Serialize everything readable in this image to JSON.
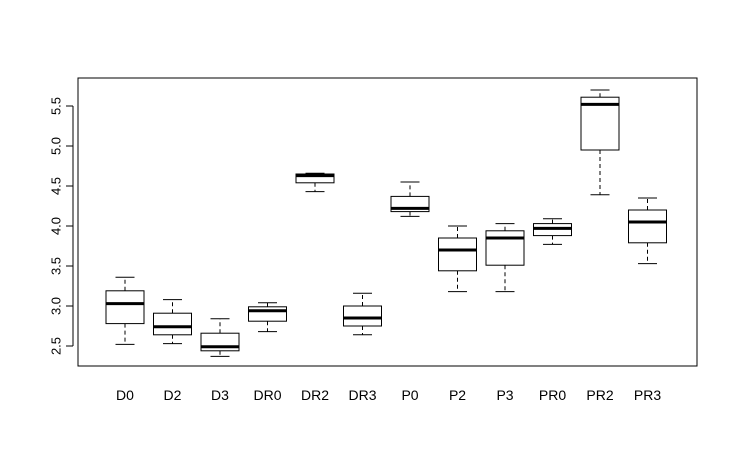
{
  "chart_data": {
    "type": "boxplot",
    "title": "",
    "xlabel": "",
    "ylabel": "",
    "ylim": [
      2.25,
      5.85
    ],
    "yticks": [
      2.5,
      3.0,
      3.5,
      4.0,
      4.5,
      5.0,
      5.5
    ],
    "ytick_labels": [
      "2.5",
      "3.0",
      "3.5",
      "4.0",
      "4.5",
      "5.0",
      "5.5"
    ],
    "categories": [
      "D0",
      "D2",
      "D3",
      "DR0",
      "DR2",
      "DR3",
      "P0",
      "P2",
      "P3",
      "PR0",
      "PR2",
      "PR3"
    ],
    "boxes": [
      {
        "name": "D0",
        "whisker_low": 2.52,
        "q1": 2.78,
        "median": 3.03,
        "q3": 3.19,
        "whisker_high": 3.36
      },
      {
        "name": "D2",
        "whisker_low": 2.53,
        "q1": 2.64,
        "median": 2.74,
        "q3": 2.91,
        "whisker_high": 3.08
      },
      {
        "name": "D3",
        "whisker_low": 2.37,
        "q1": 2.44,
        "median": 2.49,
        "q3": 2.66,
        "whisker_high": 2.84
      },
      {
        "name": "DR0",
        "whisker_low": 2.68,
        "q1": 2.81,
        "median": 2.94,
        "q3": 2.99,
        "whisker_high": 3.04
      },
      {
        "name": "DR2",
        "whisker_low": 4.43,
        "q1": 4.54,
        "median": 4.63,
        "q3": 4.65,
        "whisker_high": 4.66
      },
      {
        "name": "DR3",
        "whisker_low": 2.64,
        "q1": 2.75,
        "median": 2.85,
        "q3": 3.0,
        "whisker_high": 3.16
      },
      {
        "name": "P0",
        "whisker_low": 4.12,
        "q1": 4.18,
        "median": 4.22,
        "q3": 4.37,
        "whisker_high": 4.55
      },
      {
        "name": "P2",
        "whisker_low": 3.18,
        "q1": 3.44,
        "median": 3.7,
        "q3": 3.85,
        "whisker_high": 4.0
      },
      {
        "name": "P3",
        "whisker_low": 3.18,
        "q1": 3.51,
        "median": 3.85,
        "q3": 3.94,
        "whisker_high": 4.03
      },
      {
        "name": "PR0",
        "whisker_low": 3.77,
        "q1": 3.88,
        "median": 3.97,
        "q3": 4.03,
        "whisker_high": 4.09
      },
      {
        "name": "PR2",
        "whisker_low": 4.39,
        "q1": 4.95,
        "median": 5.52,
        "q3": 5.61,
        "whisker_high": 5.7
      },
      {
        "name": "PR3",
        "whisker_low": 3.53,
        "q1": 3.79,
        "median": 4.05,
        "q3": 4.2,
        "whisker_high": 4.35
      }
    ],
    "grid": false,
    "legend": "none"
  }
}
